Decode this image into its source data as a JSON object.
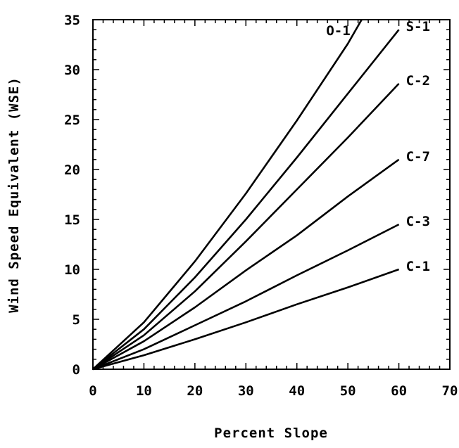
{
  "chart_data": {
    "type": "line",
    "xlabel": "Percent Slope",
    "ylabel": "Wind Speed Equivalent (WSE)",
    "xlim": [
      0,
      70
    ],
    "ylim": [
      0,
      35
    ],
    "x_ticks": [
      "0",
      "10",
      "20",
      "30",
      "40",
      "50",
      "60",
      "70"
    ],
    "y_ticks": [
      "0",
      "5",
      "10",
      "15",
      "20",
      "25",
      "30",
      "35"
    ],
    "grid": false,
    "legend": "none",
    "line_color": "#000000",
    "series": [
      {
        "name": "O-1",
        "x": [
          0,
          10,
          20,
          30,
          40,
          50,
          52.7
        ],
        "y": [
          0,
          4.7,
          10.8,
          17.6,
          24.9,
          32.6,
          35
        ]
      },
      {
        "name": "S-1",
        "x": [
          0,
          10,
          20,
          30,
          40,
          50,
          60
        ],
        "y": [
          0,
          4.0,
          9.2,
          15.0,
          21.2,
          27.6,
          34
        ]
      },
      {
        "name": "C-2",
        "x": [
          0,
          10,
          20,
          30,
          40,
          50,
          60
        ],
        "y": [
          0,
          3.4,
          7.8,
          12.8,
          18.0,
          23.2,
          28.6
        ]
      },
      {
        "name": "C-7",
        "x": [
          0,
          10,
          20,
          30,
          40,
          50,
          60
        ],
        "y": [
          0,
          2.8,
          6.2,
          9.9,
          13.4,
          17.3,
          21.0
        ]
      },
      {
        "name": "C-3",
        "x": [
          0,
          10,
          20,
          30,
          40,
          50,
          60
        ],
        "y": [
          0,
          2.0,
          4.4,
          6.8,
          9.4,
          11.9,
          14.5
        ]
      },
      {
        "name": "C-1",
        "x": [
          0,
          10,
          20,
          30,
          40,
          50,
          60
        ],
        "y": [
          0,
          1.4,
          3.0,
          4.7,
          6.5,
          8.2,
          10.0
        ]
      }
    ]
  }
}
